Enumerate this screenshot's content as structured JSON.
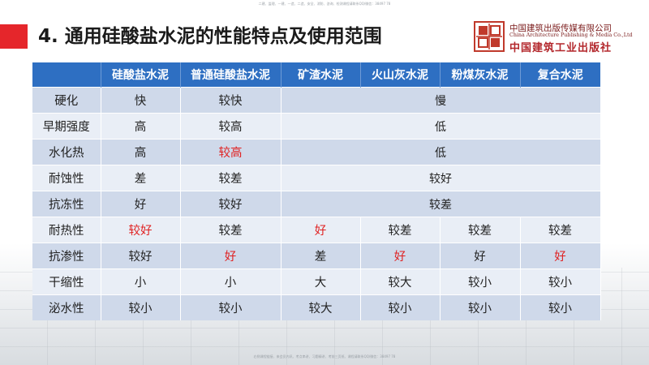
{
  "header_note": "二建、监理、一建、一造、二造、安全、消防、咨询、检测课程请联系QQ/微信：38497 78",
  "footer_note": "右侧课程链接、来会员内讯、考点串讲、习题精讲、考前三页纸、课程请联系QQ/微信：38497 78",
  "title": "4. 通用硅酸盐水泥的性能特点及使用范围",
  "logo": {
    "cn": "中国建筑出版传媒有限公司",
    "en": "China Architecture Publishing & Media Co.,Ltd",
    "callig": "中国建筑工业出版社"
  },
  "colors": {
    "accent": "#e5262b",
    "header_blue": "#2e6fc2",
    "highlight_red": "#e02020",
    "row_dark": "#cfd9ea",
    "row_light": "#e9eef6"
  },
  "table": {
    "headers": [
      "",
      "硅酸盐水泥",
      "普通硅酸盐水泥",
      "矿渣水泥",
      "火山灰水泥",
      "粉煤灰水泥",
      "复合水泥"
    ],
    "rows": [
      {
        "label": "硬化",
        "c1": "快",
        "c2": "较快",
        "merged": "慢"
      },
      {
        "label": "早期强度",
        "c1": "高",
        "c2": "较高",
        "merged": "低"
      },
      {
        "label": "水化热",
        "c1": "高",
        "c2": "较高",
        "merged": "低"
      },
      {
        "label": "耐蚀性",
        "c1": "差",
        "c2": "较差",
        "merged": "较好"
      },
      {
        "label": "抗冻性",
        "c1": "好",
        "c2": "较好",
        "merged": "较差"
      },
      {
        "label": "耐热性",
        "c1": "较好",
        "c2": "较差",
        "c3": "好",
        "c4": "较差",
        "c5": "较差",
        "c6": "较差"
      },
      {
        "label": "抗渗性",
        "c1": "较好",
        "c2": "好",
        "c3": "差",
        "c4": "好",
        "c5": "好",
        "c6": "好"
      },
      {
        "label": "干缩性",
        "c1": "小",
        "c2": "小",
        "c3": "大",
        "c4": "较大",
        "c5": "较小",
        "c6": "较小"
      },
      {
        "label": "泌水性",
        "c1": "较小",
        "c2": "较小",
        "c3": "较大",
        "c4": "较小",
        "c5": "较小",
        "c6": "较小"
      }
    ]
  }
}
